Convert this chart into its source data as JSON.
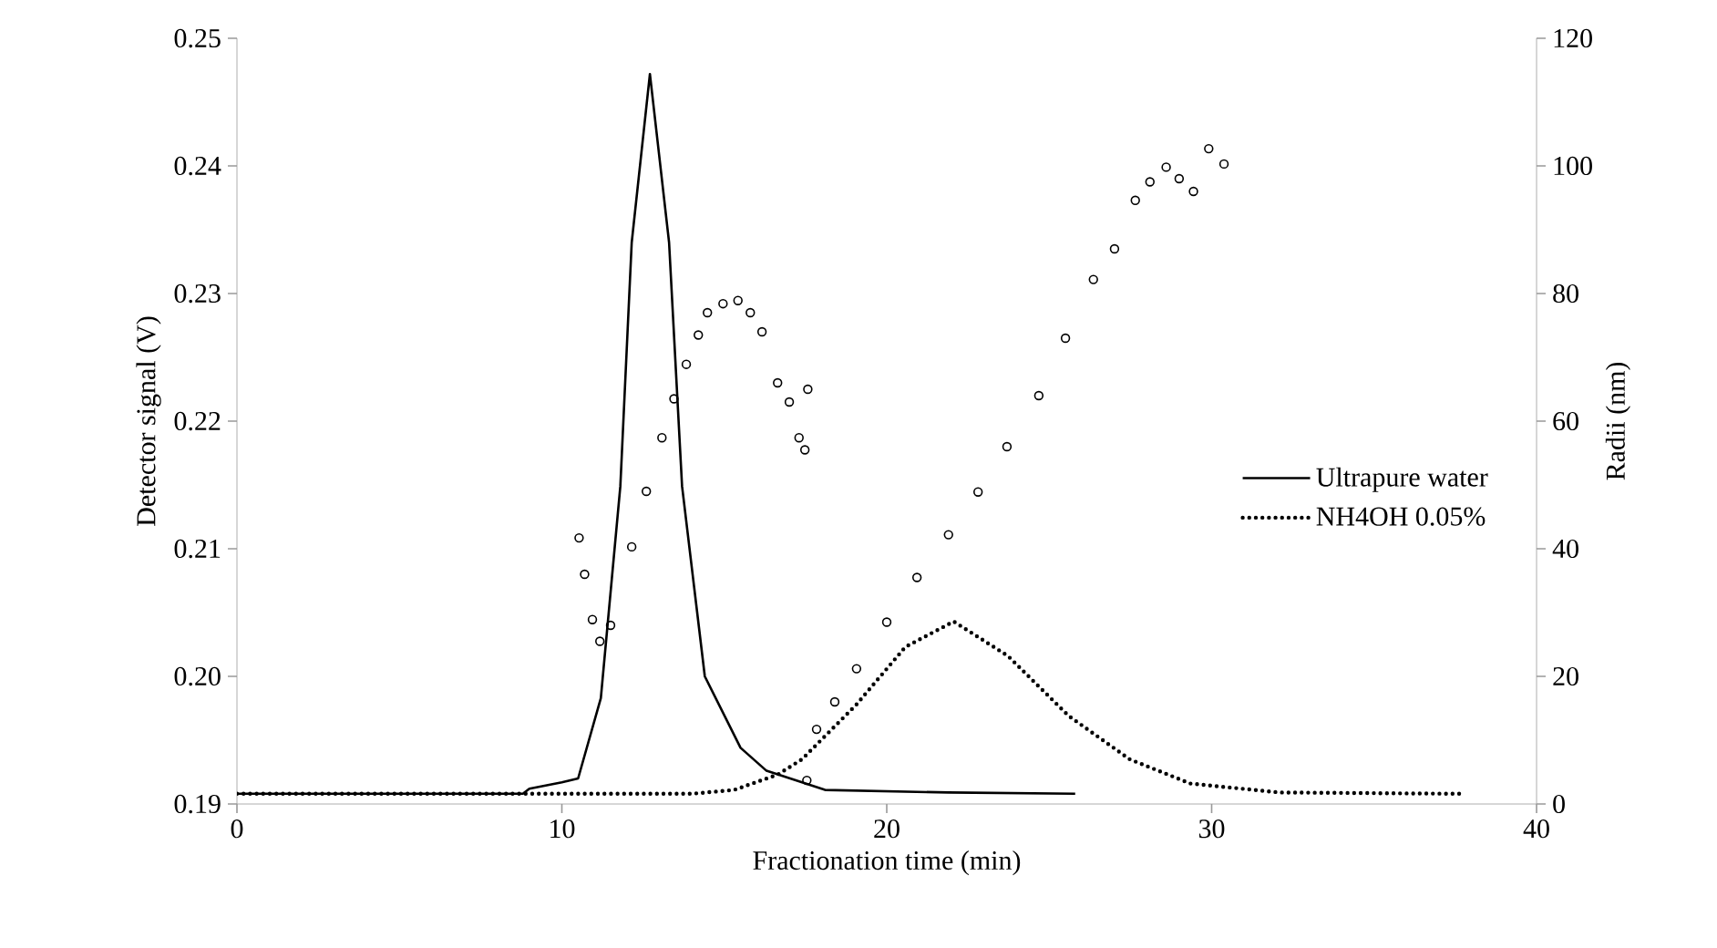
{
  "chart_data": {
    "type": "line",
    "xlabel": "Fractionation time (min)",
    "ylabel": "Detector signal (V)",
    "y2label": "Radii (nm)",
    "xlim": [
      0,
      40
    ],
    "xticks": [
      0,
      10,
      20,
      30,
      40
    ],
    "ylim": [
      0.19,
      0.25
    ],
    "yticks": [
      0.19,
      {
        "value": 0.2,
        "label": "0.20"
      },
      0.21,
      0.22,
      0.23,
      0.24,
      0.25
    ],
    "y2lim": [
      0,
      120
    ],
    "y2ticks": [
      0,
      20,
      40,
      60,
      80,
      100,
      120
    ],
    "legend": "right",
    "grid": false,
    "series": [
      {
        "name": "Ultrapure water",
        "color": "#000000",
        "line_style": "solid",
        "x": [
          0,
          8.8,
          9.0,
          10.0,
          10.5,
          11.2,
          11.8,
          12.15,
          12.71,
          13.3,
          13.7,
          14.4,
          15.5,
          16.3,
          18.1,
          21.9,
          25.8
        ],
        "values": [
          0.1908,
          0.1908,
          0.1912,
          0.1917,
          0.192,
          0.1983,
          0.2149,
          0.234,
          0.2472,
          0.234,
          0.2149,
          0.2,
          0.1944,
          0.1926,
          0.1911,
          0.1909,
          0.1908
        ]
      },
      {
        "name": "NH4OH 0.05%",
        "color": "#000000",
        "line_style": "dotted",
        "x": [
          0,
          14.0,
          15.3,
          16.64,
          17.39,
          19.07,
          20.57,
          22.06,
          23.73,
          25.6,
          27.48,
          29.35,
          32.1,
          37.7
        ],
        "values": [
          0.1908,
          0.1908,
          0.1911,
          0.1923,
          0.1935,
          0.1978,
          0.2023,
          0.2043,
          0.2016,
          0.1969,
          0.1935,
          0.1916,
          0.1909,
          0.1908
        ]
      },
      {
        "type": "scatter",
        "axis": "y2",
        "marker": "circle",
        "color": "#000000",
        "x": [
          10.53,
          10.7,
          10.94,
          11.17,
          11.5,
          12.15,
          12.6,
          13.08,
          13.45,
          13.83,
          14.2,
          14.48,
          14.96,
          15.42,
          15.8,
          16.16,
          16.64,
          17.0,
          17.3,
          17.48,
          17.57
        ],
        "values": [
          41.7,
          36,
          28.9,
          25.5,
          28,
          40.3,
          49,
          57.4,
          63.5,
          68.9,
          73.5,
          77,
          78.4,
          78.9,
          77,
          74,
          66,
          63,
          57.4,
          55.5,
          65
        ]
      },
      {
        "type": "scatter",
        "axis": "y2",
        "marker": "circle",
        "color": "#000000",
        "x": [
          17.54,
          17.84,
          18.4,
          19.07,
          20.0,
          20.93,
          21.9,
          22.81,
          23.7,
          24.68,
          25.5,
          26.36,
          27.01,
          27.65,
          28.1,
          28.6,
          29.0,
          29.44,
          29.91,
          30.38
        ],
        "values": [
          3.7,
          11.7,
          16,
          21.2,
          28.5,
          35.5,
          42.2,
          48.9,
          56,
          64,
          73,
          82.2,
          87,
          94.6,
          97.5,
          99.8,
          98,
          96,
          102.7,
          100.3
        ]
      }
    ]
  }
}
